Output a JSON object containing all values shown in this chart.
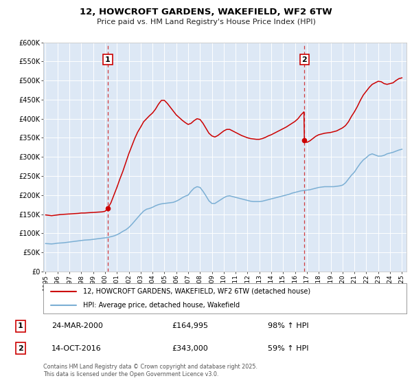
{
  "title": "12, HOWCROFT GARDENS, WAKEFIELD, WF2 6TW",
  "subtitle": "Price paid vs. HM Land Registry's House Price Index (HPI)",
  "background_color": "#ffffff",
  "plot_bg_color": "#dde8f5",
  "grid_color": "#ffffff",
  "ylim": [
    0,
    600000
  ],
  "yticks": [
    0,
    50000,
    100000,
    150000,
    200000,
    250000,
    300000,
    350000,
    400000,
    450000,
    500000,
    550000,
    600000
  ],
  "xlim_start": 1994.8,
  "xlim_end": 2025.4,
  "xticks": [
    1995,
    1996,
    1997,
    1998,
    1999,
    2000,
    2001,
    2002,
    2003,
    2004,
    2005,
    2006,
    2007,
    2008,
    2009,
    2010,
    2011,
    2012,
    2013,
    2014,
    2015,
    2016,
    2017,
    2018,
    2019,
    2020,
    2021,
    2022,
    2023,
    2024,
    2025
  ],
  "sale_color": "#cc0000",
  "hpi_color": "#7bafd4",
  "sale_label": "12, HOWCROFT GARDENS, WAKEFIELD, WF2 6TW (detached house)",
  "hpi_label": "HPI: Average price, detached house, Wakefield",
  "marker1_x": 2000.23,
  "marker1_y": 164995,
  "marker2_x": 2016.79,
  "marker2_y": 343000,
  "vline1_x": 2000.23,
  "vline2_x": 2016.79,
  "annotation1_date": "24-MAR-2000",
  "annotation1_price": "£164,995",
  "annotation1_hpi": "98% ↑ HPI",
  "annotation2_date": "14-OCT-2016",
  "annotation2_price": "£343,000",
  "annotation2_hpi": "59% ↑ HPI",
  "footer_line1": "Contains HM Land Registry data © Crown copyright and database right 2025.",
  "footer_line2": "This data is licensed under the Open Government Licence v3.0.",
  "hpi_data": [
    [
      1995.0,
      73000
    ],
    [
      1995.25,
      72500
    ],
    [
      1995.5,
      72000
    ],
    [
      1995.75,
      72800
    ],
    [
      1996.0,
      74000
    ],
    [
      1996.25,
      74500
    ],
    [
      1996.5,
      75000
    ],
    [
      1996.75,
      76000
    ],
    [
      1997.0,
      77000
    ],
    [
      1997.25,
      78000
    ],
    [
      1997.5,
      79000
    ],
    [
      1997.75,
      80000
    ],
    [
      1998.0,
      81000
    ],
    [
      1998.25,
      82000
    ],
    [
      1998.5,
      82500
    ],
    [
      1998.75,
      83000
    ],
    [
      1999.0,
      84000
    ],
    [
      1999.25,
      85000
    ],
    [
      1999.5,
      86000
    ],
    [
      1999.75,
      87000
    ],
    [
      2000.0,
      88000
    ],
    [
      2000.25,
      89000
    ],
    [
      2000.5,
      91000
    ],
    [
      2000.75,
      93000
    ],
    [
      2001.0,
      96000
    ],
    [
      2001.25,
      100000
    ],
    [
      2001.5,
      105000
    ],
    [
      2001.75,
      109000
    ],
    [
      2002.0,
      115000
    ],
    [
      2002.25,
      123000
    ],
    [
      2002.5,
      132000
    ],
    [
      2002.75,
      141000
    ],
    [
      2003.0,
      150000
    ],
    [
      2003.25,
      158000
    ],
    [
      2003.5,
      163000
    ],
    [
      2003.75,
      165000
    ],
    [
      2004.0,
      168000
    ],
    [
      2004.25,
      172000
    ],
    [
      2004.5,
      175000
    ],
    [
      2004.75,
      177000
    ],
    [
      2005.0,
      178000
    ],
    [
      2005.25,
      179000
    ],
    [
      2005.5,
      180000
    ],
    [
      2005.75,
      181000
    ],
    [
      2006.0,
      184000
    ],
    [
      2006.25,
      188000
    ],
    [
      2006.5,
      193000
    ],
    [
      2006.75,
      197000
    ],
    [
      2007.0,
      200000
    ],
    [
      2007.25,
      210000
    ],
    [
      2007.5,
      218000
    ],
    [
      2007.75,
      222000
    ],
    [
      2008.0,
      220000
    ],
    [
      2008.25,
      210000
    ],
    [
      2008.5,
      198000
    ],
    [
      2008.75,
      185000
    ],
    [
      2009.0,
      178000
    ],
    [
      2009.25,
      178000
    ],
    [
      2009.5,
      183000
    ],
    [
      2009.75,
      188000
    ],
    [
      2010.0,
      193000
    ],
    [
      2010.25,
      197000
    ],
    [
      2010.5,
      198000
    ],
    [
      2010.75,
      196000
    ],
    [
      2011.0,
      194000
    ],
    [
      2011.25,
      192000
    ],
    [
      2011.5,
      190000
    ],
    [
      2011.75,
      188000
    ],
    [
      2012.0,
      186000
    ],
    [
      2012.25,
      184000
    ],
    [
      2012.5,
      183000
    ],
    [
      2012.75,
      183000
    ],
    [
      2013.0,
      183000
    ],
    [
      2013.25,
      184000
    ],
    [
      2013.5,
      186000
    ],
    [
      2013.75,
      188000
    ],
    [
      2014.0,
      190000
    ],
    [
      2014.25,
      192000
    ],
    [
      2014.5,
      194000
    ],
    [
      2014.75,
      196000
    ],
    [
      2015.0,
      198000
    ],
    [
      2015.25,
      200000
    ],
    [
      2015.5,
      202000
    ],
    [
      2015.75,
      205000
    ],
    [
      2016.0,
      207000
    ],
    [
      2016.25,
      209000
    ],
    [
      2016.5,
      211000
    ],
    [
      2016.75,
      212000
    ],
    [
      2017.0,
      213000
    ],
    [
      2017.25,
      214000
    ],
    [
      2017.5,
      216000
    ],
    [
      2017.75,
      218000
    ],
    [
      2018.0,
      220000
    ],
    [
      2018.25,
      221000
    ],
    [
      2018.5,
      222000
    ],
    [
      2018.75,
      222000
    ],
    [
      2019.0,
      222000
    ],
    [
      2019.25,
      222000
    ],
    [
      2019.5,
      223000
    ],
    [
      2019.75,
      224000
    ],
    [
      2020.0,
      226000
    ],
    [
      2020.25,
      232000
    ],
    [
      2020.5,
      242000
    ],
    [
      2020.75,
      252000
    ],
    [
      2021.0,
      260000
    ],
    [
      2021.25,
      272000
    ],
    [
      2021.5,
      283000
    ],
    [
      2021.75,
      292000
    ],
    [
      2022.0,
      298000
    ],
    [
      2022.25,
      305000
    ],
    [
      2022.5,
      308000
    ],
    [
      2022.75,
      305000
    ],
    [
      2023.0,
      302000
    ],
    [
      2023.25,
      302000
    ],
    [
      2023.5,
      304000
    ],
    [
      2023.75,
      308000
    ],
    [
      2024.0,
      310000
    ],
    [
      2024.25,
      312000
    ],
    [
      2024.5,
      315000
    ],
    [
      2024.75,
      318000
    ],
    [
      2025.0,
      320000
    ]
  ],
  "sale_data": [
    [
      1995.0,
      148000
    ],
    [
      1995.25,
      147000
    ],
    [
      1995.5,
      146000
    ],
    [
      1995.75,
      147000
    ],
    [
      1996.0,
      148000
    ],
    [
      1996.25,
      149000
    ],
    [
      1996.5,
      149500
    ],
    [
      1996.75,
      150000
    ],
    [
      1997.0,
      150500
    ],
    [
      1997.25,
      151000
    ],
    [
      1997.5,
      151500
    ],
    [
      1997.75,
      152000
    ],
    [
      1998.0,
      153000
    ],
    [
      1998.25,
      153000
    ],
    [
      1998.5,
      153500
    ],
    [
      1998.75,
      154000
    ],
    [
      1999.0,
      154500
    ],
    [
      1999.25,
      155000
    ],
    [
      1999.5,
      155500
    ],
    [
      1999.75,
      156000
    ],
    [
      2000.0,
      157500
    ],
    [
      2000.23,
      164995
    ],
    [
      2000.5,
      180000
    ],
    [
      2000.75,
      200000
    ],
    [
      2001.0,
      220000
    ],
    [
      2001.25,
      242000
    ],
    [
      2001.5,
      262000
    ],
    [
      2001.75,
      285000
    ],
    [
      2002.0,
      308000
    ],
    [
      2002.25,
      328000
    ],
    [
      2002.5,
      348000
    ],
    [
      2002.75,
      365000
    ],
    [
      2003.0,
      378000
    ],
    [
      2003.25,
      392000
    ],
    [
      2003.5,
      400000
    ],
    [
      2003.75,
      408000
    ],
    [
      2004.0,
      415000
    ],
    [
      2004.25,
      425000
    ],
    [
      2004.5,
      438000
    ],
    [
      2004.75,
      448000
    ],
    [
      2005.0,
      448000
    ],
    [
      2005.25,
      440000
    ],
    [
      2005.5,
      430000
    ],
    [
      2005.75,
      420000
    ],
    [
      2006.0,
      410000
    ],
    [
      2006.25,
      403000
    ],
    [
      2006.5,
      396000
    ],
    [
      2006.75,
      390000
    ],
    [
      2007.0,
      385000
    ],
    [
      2007.25,
      388000
    ],
    [
      2007.5,
      395000
    ],
    [
      2007.75,
      400000
    ],
    [
      2008.0,
      398000
    ],
    [
      2008.25,
      388000
    ],
    [
      2008.5,
      375000
    ],
    [
      2008.75,
      362000
    ],
    [
      2009.0,
      355000
    ],
    [
      2009.25,
      352000
    ],
    [
      2009.5,
      356000
    ],
    [
      2009.75,
      362000
    ],
    [
      2010.0,
      368000
    ],
    [
      2010.25,
      372000
    ],
    [
      2010.5,
      372000
    ],
    [
      2010.75,
      368000
    ],
    [
      2011.0,
      364000
    ],
    [
      2011.25,
      360000
    ],
    [
      2011.5,
      356000
    ],
    [
      2011.75,
      353000
    ],
    [
      2012.0,
      350000
    ],
    [
      2012.25,
      348000
    ],
    [
      2012.5,
      347000
    ],
    [
      2012.75,
      346000
    ],
    [
      2013.0,
      346000
    ],
    [
      2013.25,
      348000
    ],
    [
      2013.5,
      351000
    ],
    [
      2013.75,
      355000
    ],
    [
      2014.0,
      358000
    ],
    [
      2014.25,
      362000
    ],
    [
      2014.5,
      366000
    ],
    [
      2014.75,
      370000
    ],
    [
      2015.0,
      374000
    ],
    [
      2015.25,
      378000
    ],
    [
      2015.5,
      383000
    ],
    [
      2015.75,
      388000
    ],
    [
      2016.0,
      393000
    ],
    [
      2016.25,
      400000
    ],
    [
      2016.5,
      410000
    ],
    [
      2016.75,
      418000
    ],
    [
      2016.79,
      343000
    ],
    [
      2017.0,
      338000
    ],
    [
      2017.25,
      342000
    ],
    [
      2017.5,
      348000
    ],
    [
      2017.75,
      354000
    ],
    [
      2018.0,
      358000
    ],
    [
      2018.25,
      360000
    ],
    [
      2018.5,
      362000
    ],
    [
      2018.75,
      363000
    ],
    [
      2019.0,
      364000
    ],
    [
      2019.25,
      366000
    ],
    [
      2019.5,
      368000
    ],
    [
      2019.75,
      372000
    ],
    [
      2020.0,
      376000
    ],
    [
      2020.25,
      382000
    ],
    [
      2020.5,
      392000
    ],
    [
      2020.75,
      406000
    ],
    [
      2021.0,
      418000
    ],
    [
      2021.25,
      432000
    ],
    [
      2021.5,
      448000
    ],
    [
      2021.75,
      462000
    ],
    [
      2022.0,
      472000
    ],
    [
      2022.25,
      482000
    ],
    [
      2022.5,
      490000
    ],
    [
      2022.75,
      494000
    ],
    [
      2023.0,
      498000
    ],
    [
      2023.25,
      497000
    ],
    [
      2023.5,
      492000
    ],
    [
      2023.75,
      490000
    ],
    [
      2024.0,
      492000
    ],
    [
      2024.25,
      494000
    ],
    [
      2024.5,
      500000
    ],
    [
      2024.75,
      505000
    ],
    [
      2025.0,
      507000
    ]
  ]
}
